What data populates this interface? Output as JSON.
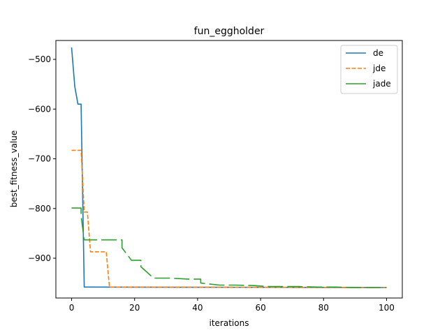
{
  "chart_data": {
    "type": "line",
    "title": "fun_eggholder",
    "xlabel": "iterations",
    "ylabel": "best_fitness_value",
    "xlim": [
      -5,
      105
    ],
    "ylim": [
      -980,
      -462
    ],
    "xticks": [
      0,
      20,
      40,
      60,
      80,
      100
    ],
    "yticks": [
      -900,
      -800,
      -700,
      -600,
      -500
    ],
    "xtick_labels": [
      "0",
      "20",
      "40",
      "60",
      "80",
      "100"
    ],
    "ytick_labels": [
      "−900",
      "−800",
      "−700",
      "−600",
      "−500"
    ],
    "grid": false,
    "legend": "top-right",
    "series": [
      {
        "name": "de",
        "color": "#1f77b4",
        "dash": "solid",
        "points": [
          [
            0,
            -476
          ],
          [
            1,
            -555
          ],
          [
            2,
            -590
          ],
          [
            3,
            -590
          ],
          [
            4,
            -958
          ],
          [
            100,
            -959
          ]
        ]
      },
      {
        "name": "jde",
        "color": "#ff7f0e",
        "dash": "dashed",
        "points": [
          [
            0,
            -683
          ],
          [
            3,
            -683
          ],
          [
            4,
            -807
          ],
          [
            5,
            -807
          ],
          [
            6,
            -887
          ],
          [
            11,
            -887
          ],
          [
            12,
            -958
          ],
          [
            100,
            -959
          ]
        ]
      },
      {
        "name": "jade",
        "color": "#2ca02c",
        "dash": "dashed-long",
        "points": [
          [
            0,
            -799
          ],
          [
            3,
            -799
          ],
          [
            3,
            -815
          ],
          [
            4,
            -863
          ],
          [
            7,
            -863
          ],
          [
            13,
            -863
          ],
          [
            16,
            -863
          ],
          [
            16,
            -879
          ],
          [
            19,
            -904
          ],
          [
            22,
            -904
          ],
          [
            22,
            -917
          ],
          [
            26,
            -940
          ],
          [
            31,
            -940
          ],
          [
            37,
            -942
          ],
          [
            41,
            -942
          ],
          [
            41,
            -950
          ],
          [
            47,
            -954
          ],
          [
            52,
            -954
          ],
          [
            58,
            -955
          ],
          [
            62,
            -957
          ],
          [
            68,
            -957
          ],
          [
            72,
            -957
          ],
          [
            78,
            -958
          ],
          [
            84,
            -958
          ],
          [
            90,
            -959
          ],
          [
            96,
            -959
          ],
          [
            100,
            -959
          ]
        ]
      }
    ]
  }
}
